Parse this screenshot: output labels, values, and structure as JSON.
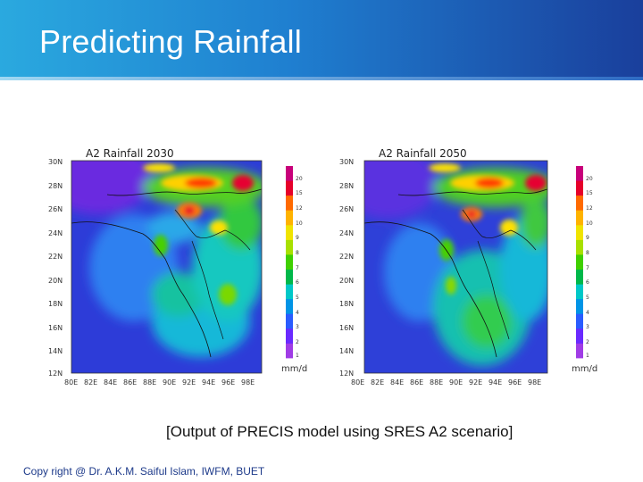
{
  "slide": {
    "title": "Predicting Rainfall",
    "caption": "[Output of PRECIS model using SRES A2 scenario]",
    "footer": "Copy right @ Dr. A.K.M. Saiful Islam, IWFM, BUET"
  },
  "maps": [
    {
      "title": "A2 Rainfall 2030",
      "lat_labels": [
        "30N",
        "28N",
        "26N",
        "24N",
        "22N",
        "20N",
        "18N",
        "16N",
        "14N",
        "12N"
      ],
      "lon_labels": [
        "80E",
        "82E",
        "84E",
        "86E",
        "88E",
        "90E",
        "92E",
        "94E",
        "96E",
        "98E"
      ],
      "colorbar_labels": [
        "20",
        "15",
        "12",
        "10",
        "9",
        "8",
        "7",
        "6",
        "5",
        "4",
        "3",
        "2",
        "1"
      ],
      "unit": "mm/d"
    },
    {
      "title": "A2 Rainfall 2050",
      "lat_labels": [
        "30N",
        "28N",
        "26N",
        "24N",
        "22N",
        "20N",
        "18N",
        "16N",
        "14N",
        "12N"
      ],
      "lon_labels": [
        "80E",
        "82E",
        "84E",
        "86E",
        "88E",
        "90E",
        "92E",
        "94E",
        "96E",
        "98E"
      ],
      "colorbar_labels": [
        "20",
        "15",
        "12",
        "10",
        "9",
        "8",
        "7",
        "6",
        "5",
        "4",
        "3",
        "2",
        "1"
      ],
      "unit": "mm/d"
    }
  ],
  "colorbar_colors": [
    "#c8007a",
    "#e6002a",
    "#ff6a00",
    "#ffb300",
    "#f0e400",
    "#a8e000",
    "#3fd000",
    "#00b84a",
    "#00c8c8",
    "#0094e6",
    "#2a5cff",
    "#6a2aff",
    "#a03ce6",
    "#ffffff"
  ]
}
